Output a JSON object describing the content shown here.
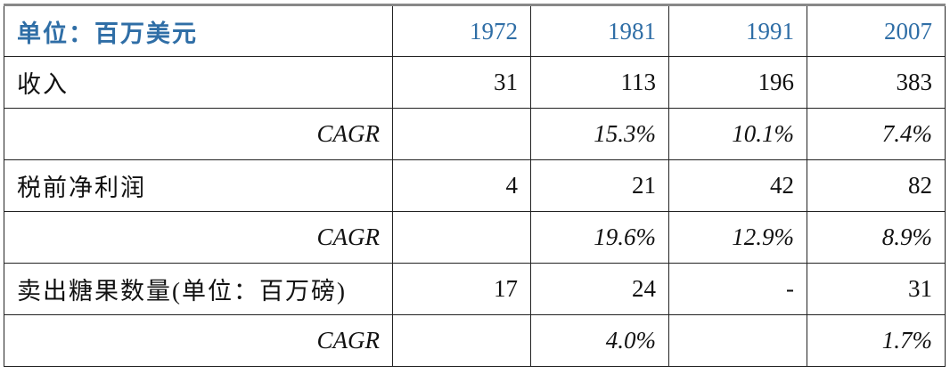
{
  "table": {
    "header": [
      "单位：百万美元",
      "1972",
      "1981",
      "1991",
      "2007"
    ],
    "rows": [
      [
        "收入",
        "31",
        "113",
        "196",
        "383"
      ],
      [
        "CAGR",
        null,
        "15.3%",
        "10.1%",
        "7.4%"
      ],
      [
        "税前净利润",
        "4",
        "21",
        "42",
        "82"
      ],
      [
        "CAGR",
        null,
        "19.6%",
        "12.9%",
        "8.9%"
      ],
      [
        "卖出糖果数量(单位：百万磅)",
        "17",
        "24",
        "-",
        "31"
      ],
      [
        "CAGR",
        null,
        "4.0%",
        null,
        "1.7%"
      ]
    ]
  }
}
